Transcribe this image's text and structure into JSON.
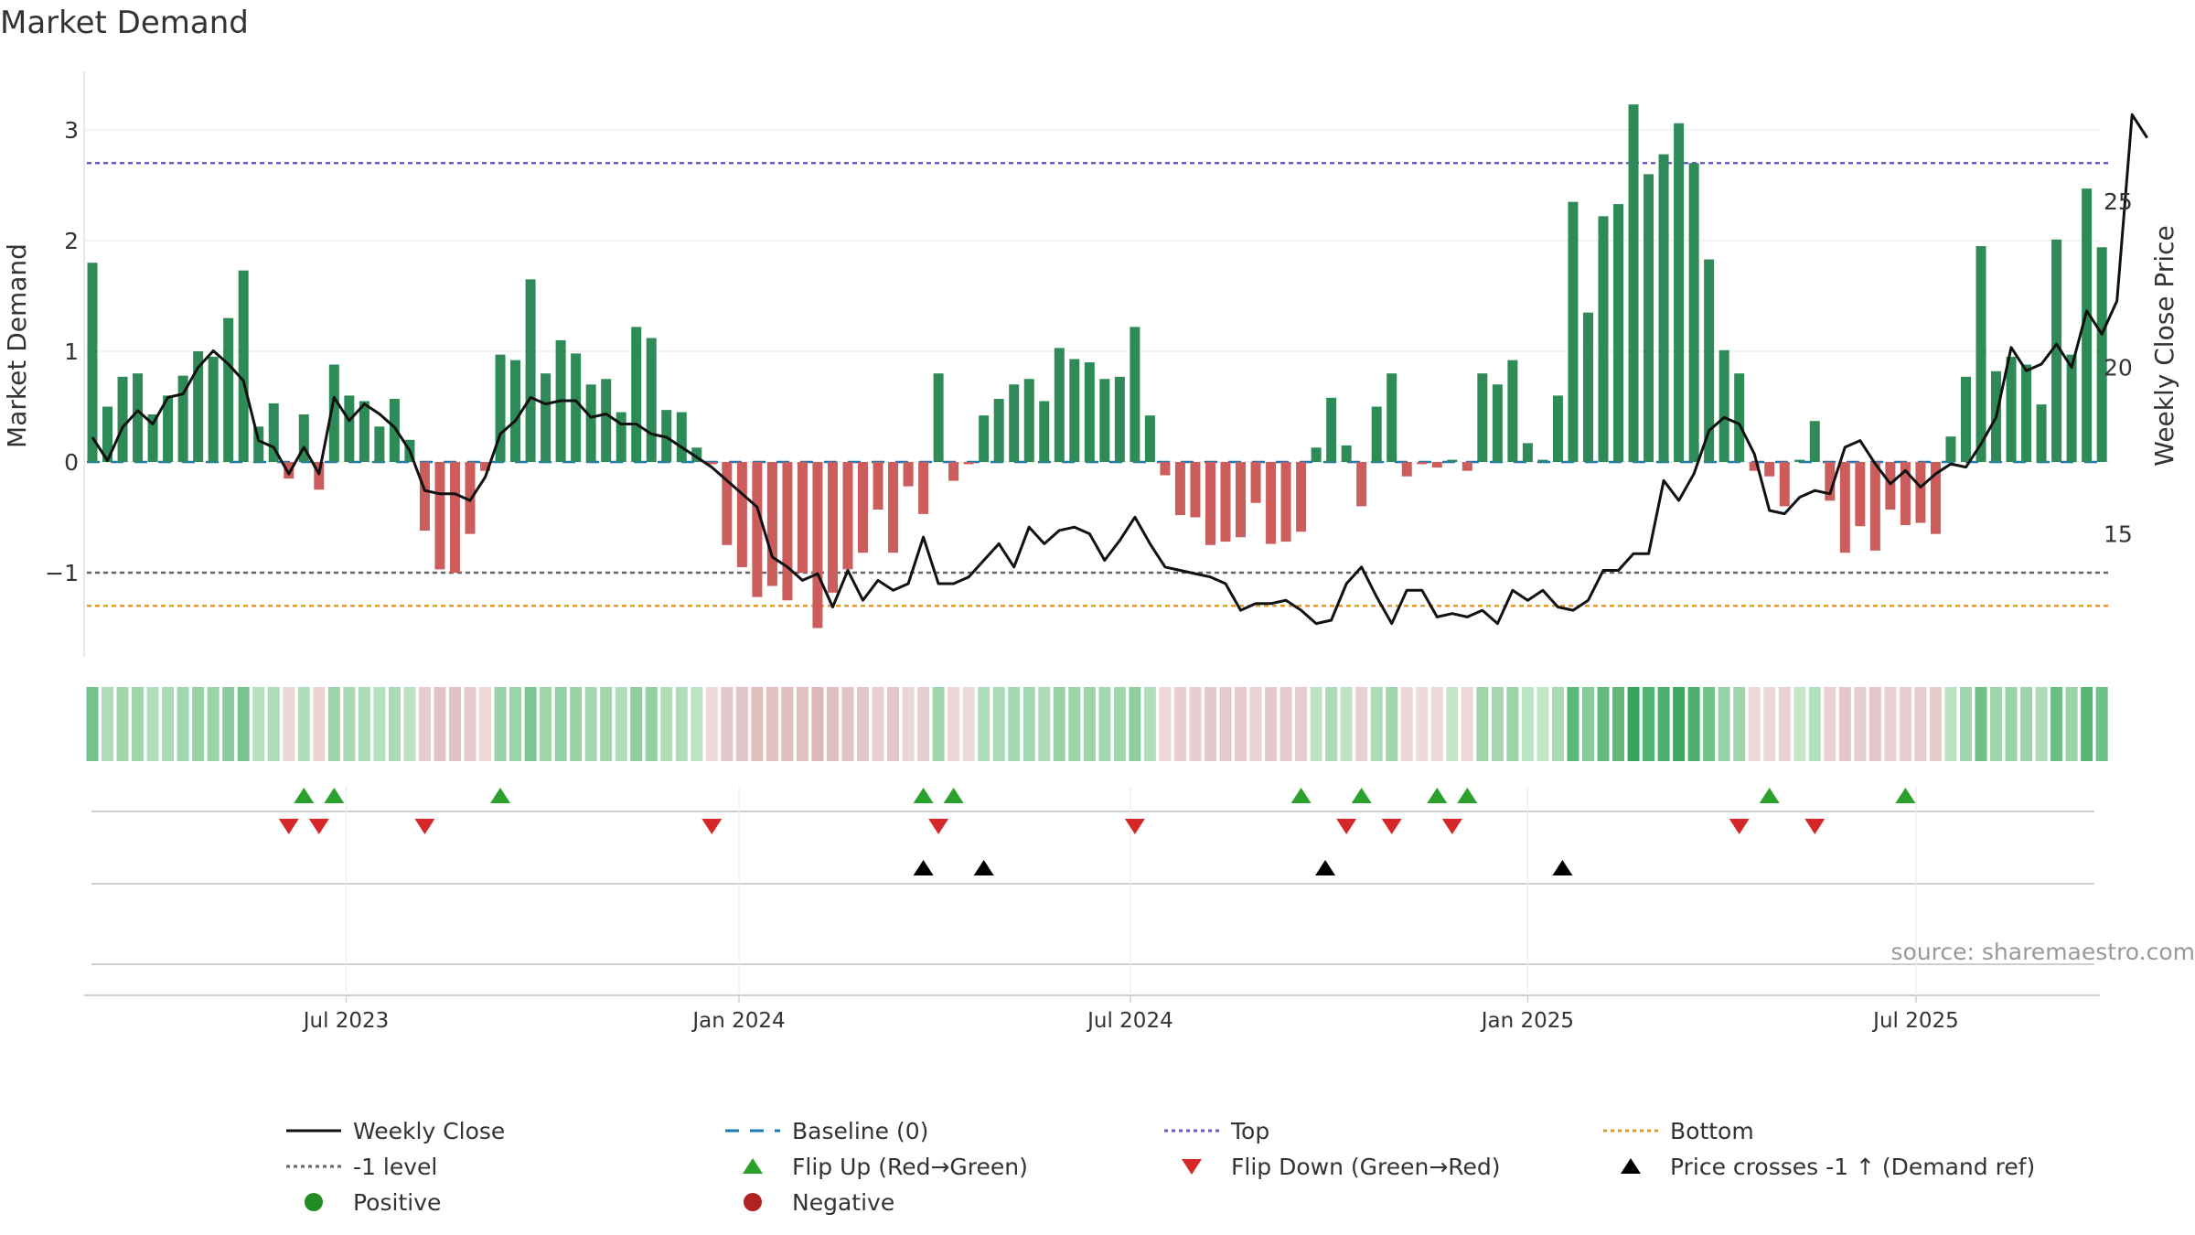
{
  "chart_data": {
    "type": "bar",
    "title": "Market Demand",
    "ylabel_left": "Market Demand",
    "ylabel_right": "Weekly Close Price",
    "ylim_left": [
      -1.75,
      3.5
    ],
    "ylim_right": [
      11.3,
      28.9
    ],
    "yticks_left": [
      3,
      2,
      1,
      0,
      -1
    ],
    "yticks_left_labels": [
      "3",
      "2",
      "1",
      "0",
      "−1"
    ],
    "yticks_right": [
      25,
      20,
      15
    ],
    "x_start": "2023-03-19",
    "week_step": 7,
    "xticks": [
      {
        "label": "Jul 2023",
        "week": 16.8
      },
      {
        "label": "Jan 2024",
        "week": 42.8
      },
      {
        "label": "Jul 2024",
        "week": 68.7
      },
      {
        "label": "Jan 2025",
        "week": 95.0
      },
      {
        "label": "Jul 2025",
        "week": 120.7
      }
    ],
    "demand": [
      1.8,
      0.5,
      0.77,
      0.8,
      0.43,
      0.6,
      0.78,
      1.0,
      0.95,
      1.3,
      1.73,
      0.32,
      0.53,
      -0.15,
      0.43,
      -0.25,
      0.88,
      0.6,
      0.55,
      0.32,
      0.57,
      0.2,
      -0.62,
      -0.97,
      -1.0,
      -0.65,
      -0.08,
      0.97,
      0.92,
      1.65,
      0.8,
      1.1,
      0.98,
      0.7,
      0.75,
      0.45,
      1.22,
      1.12,
      0.47,
      0.45,
      0.13,
      -0.02,
      -0.75,
      -0.95,
      -1.22,
      -1.12,
      -1.25,
      -1.0,
      -1.5,
      -1.18,
      -0.97,
      -0.82,
      -0.43,
      -0.82,
      -0.22,
      -0.47,
      0.8,
      -0.17,
      -0.02,
      0.42,
      0.57,
      0.7,
      0.75,
      0.55,
      1.03,
      0.93,
      0.9,
      0.75,
      0.77,
      1.22,
      0.42,
      -0.12,
      -0.48,
      -0.5,
      -0.75,
      -0.72,
      -0.68,
      -0.37,
      -0.74,
      -0.72,
      -0.63,
      0.13,
      0.58,
      0.15,
      -0.4,
      0.5,
      0.8,
      -0.13,
      -0.02,
      -0.05,
      0.02,
      -0.08,
      0.8,
      0.7,
      0.92,
      0.17,
      0.02,
      0.6,
      2.35,
      1.35,
      2.22,
      2.33,
      3.23,
      2.6,
      2.78,
      3.06,
      2.7,
      1.83,
      1.01,
      0.8,
      -0.08,
      -0.13,
      -0.4,
      0.02,
      0.37,
      -0.35,
      -0.82,
      -0.58,
      -0.8,
      -0.43,
      -0.57,
      -0.55,
      -0.65,
      0.23,
      0.77,
      1.95,
      0.82,
      0.95,
      0.88,
      0.52,
      2.01,
      0.97,
      2.47,
      1.94
    ],
    "price": [
      17.9,
      17.2,
      18.2,
      18.7,
      18.3,
      19.1,
      19.2,
      20.0,
      20.5,
      20.1,
      19.6,
      17.8,
      17.6,
      16.8,
      17.6,
      16.8,
      19.1,
      18.4,
      18.9,
      18.6,
      18.2,
      17.5,
      16.3,
      16.2,
      16.2,
      16.0,
      16.7,
      18.0,
      18.4,
      19.1,
      18.9,
      19.0,
      19.0,
      18.5,
      18.6,
      18.3,
      18.3,
      18.0,
      17.9,
      17.6,
      17.3,
      17.0,
      16.6,
      16.2,
      15.8,
      14.3,
      14.0,
      13.6,
      13.8,
      12.8,
      13.9,
      13.0,
      13.6,
      13.3,
      13.5,
      14.9,
      13.5,
      13.5,
      13.7,
      14.2,
      14.7,
      14.0,
      15.2,
      14.7,
      15.1,
      15.2,
      15.0,
      14.2,
      14.8,
      15.5,
      14.7,
      14.0,
      13.9,
      13.8,
      13.7,
      13.5,
      12.7,
      12.9,
      12.9,
      13.0,
      12.7,
      12.3,
      12.4,
      13.5,
      14.0,
      13.1,
      12.3,
      13.3,
      13.3,
      12.5,
      12.6,
      12.5,
      12.7,
      12.3,
      13.3,
      13.0,
      13.3,
      12.8,
      12.7,
      13.0,
      13.9,
      13.9,
      14.4,
      14.4,
      16.6,
      16.0,
      16.8,
      18.1,
      18.5,
      18.3,
      17.4,
      15.7,
      15.6,
      16.1,
      16.3,
      16.2,
      17.6,
      17.8,
      17.1,
      16.5,
      16.9,
      16.4,
      16.8,
      17.1,
      17.0,
      17.7,
      18.5,
      20.6,
      19.9,
      20.1,
      20.7,
      20.0,
      21.7,
      21.0,
      22.0,
      27.6,
      26.9
    ],
    "series": [
      {
        "name": "Weekly Close",
        "color": "#111111",
        "style": "solid line"
      },
      {
        "name": "Baseline (0)",
        "color": "#1f77b4",
        "style": "dashed line",
        "value": 0
      },
      {
        "name": "Top",
        "color": "#6a5acd",
        "style": "dotted line",
        "value": 2.7
      },
      {
        "name": "Bottom",
        "color": "#e39a2b",
        "style": "dotted line",
        "value": -1.3
      },
      {
        "name": "-1 level",
        "color": "#666666",
        "style": "dotted line",
        "value": -1
      }
    ],
    "flip_up_weeks": [
      14.0,
      16.0,
      27.0,
      55.0,
      57.0,
      80.0,
      84.0,
      89.0,
      91.0,
      111.0,
      120.0
    ],
    "flip_down_weeks": [
      13.0,
      15.0,
      22.0,
      41.0,
      56.0,
      69.0,
      83.0,
      86.0,
      90.0,
      109.0,
      114.0
    ],
    "price_cross_weeks": [
      55.0,
      59.0,
      81.6,
      97.3
    ],
    "colors": {
      "positive_bar": "#2e8b57",
      "negative_bar": "#cd5c5c",
      "flip_up": "#2ca02c",
      "flip_down": "#d62728",
      "cross": "#000000",
      "positive_dot": "#228b22",
      "negative_dot": "#b22222"
    },
    "legend": {
      "items": [
        {
          "label": "Weekly Close",
          "marker": "line",
          "color": "#111111"
        },
        {
          "label": "Baseline (0)",
          "marker": "dash",
          "color": "#1f77b4"
        },
        {
          "label": "Top",
          "marker": "dot",
          "color": "#6a5acd"
        },
        {
          "label": "Bottom",
          "marker": "dot",
          "color": "#e39a2b"
        },
        {
          "label": "-1 level",
          "marker": "dot",
          "color": "#666666"
        },
        {
          "label": "Flip Up (Red→Green)",
          "marker": "tri-up",
          "color": "#2ca02c"
        },
        {
          "label": "Flip Down (Green→Red)",
          "marker": "tri-down",
          "color": "#d62728"
        },
        {
          "label": "Price crosses -1 ↑ (Demand ref)",
          "marker": "tri-up",
          "color": "#000000"
        },
        {
          "label": "Positive",
          "marker": "circle",
          "color": "#228b22"
        },
        {
          "label": "Negative",
          "marker": "circle",
          "color": "#b22222"
        }
      ],
      "placement": "bottom"
    },
    "source": "source: sharemaestro.com"
  }
}
